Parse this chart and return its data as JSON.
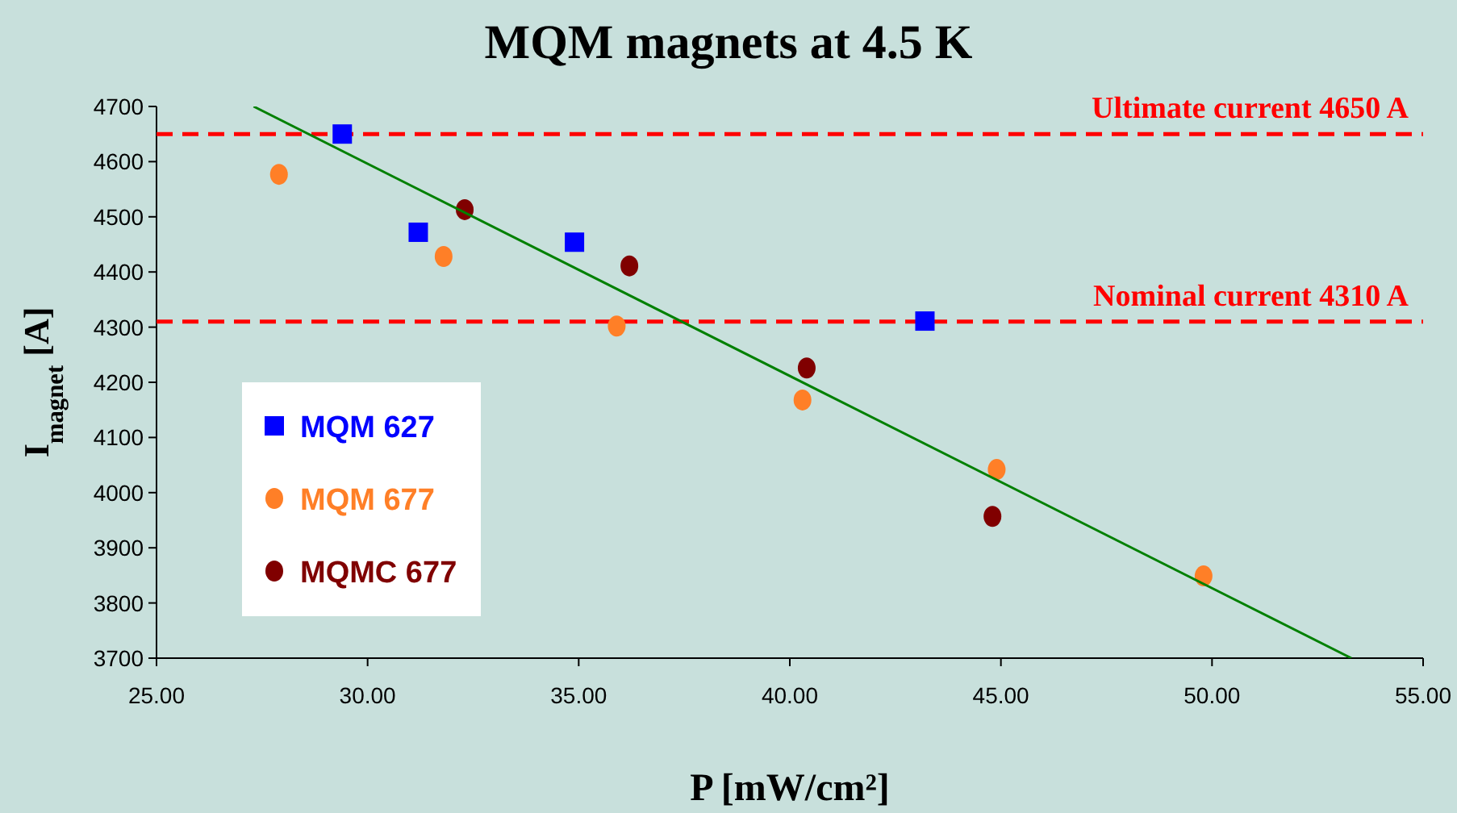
{
  "chart_data": {
    "type": "scatter",
    "title": "MQM magnets at 4.5 K",
    "xlabel": "P [mW/cm²]",
    "ylabel": "I$_{magnet}$ [A]",
    "xlim": [
      25,
      55
    ],
    "xticks": [
      {
        "value": 25,
        "label": "25.00"
      },
      {
        "value": 30,
        "label": "30.00"
      },
      {
        "value": 35,
        "label": "35.00"
      },
      {
        "value": 40,
        "label": "40.00"
      },
      {
        "value": 45,
        "label": "45.00"
      },
      {
        "value": 50,
        "label": "50.00"
      },
      {
        "value": 55,
        "label": "55.00"
      }
    ],
    "ylim": [
      3700,
      4700
    ],
    "yticks": [
      3700,
      3800,
      3900,
      4000,
      4100,
      4200,
      4300,
      4400,
      4500,
      4600,
      4700
    ],
    "grid": false,
    "legend": "left",
    "series": [
      {
        "name": "MQM 627",
        "color": "#0000ff",
        "marker": "square",
        "x": [
          29.4,
          31.2,
          34.9,
          43.2
        ],
        "values": [
          4650,
          4472,
          4454,
          4311
        ]
      },
      {
        "name": "MQM 677",
        "color": "#ff7f27",
        "marker": "circle",
        "x": [
          27.9,
          31.8,
          35.9,
          40.3,
          44.9,
          49.8
        ],
        "values": [
          4577,
          4428,
          4302,
          4168,
          4042,
          3849
        ]
      },
      {
        "name": "MQMC 677",
        "color": "#800000",
        "marker": "circle",
        "x": [
          32.3,
          36.2,
          40.4,
          44.8
        ],
        "values": [
          4513,
          4411,
          4226,
          3957
        ]
      },
      {
        "type": "line",
        "color": "#008000",
        "x": [
          27.3,
          53.3
        ],
        "values": [
          4700,
          3700
        ]
      }
    ],
    "ref_lines": [
      {
        "axis": "y",
        "value": 4650,
        "label": "Ultimate current 4650 A",
        "color": "#ff0000",
        "line_style": "dashed"
      },
      {
        "axis": "y",
        "value": 4310,
        "label": "Nominal current 4310 A",
        "color": "#ff0000",
        "line_style": "dashed"
      }
    ]
  }
}
